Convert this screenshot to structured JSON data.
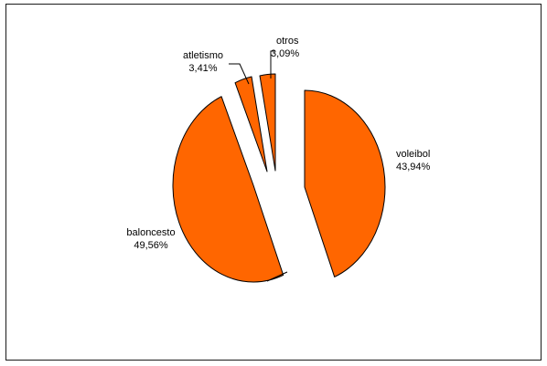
{
  "chart_data": {
    "type": "pie",
    "style": "exploded-3d",
    "slice_color": "#FF6600",
    "outline_color": "#000000",
    "background": "#FFFFFF",
    "slices": [
      {
        "label": "voleibol",
        "percent_text": "43,94%",
        "value": 43.94
      },
      {
        "label": "baloncesto",
        "percent_text": "49,56%",
        "value": 49.56
      },
      {
        "label": "atletismo",
        "percent_text": "3,41%",
        "value": 3.41
      },
      {
        "label": "otros",
        "percent_text": "3,09%",
        "value": 3.09
      }
    ]
  }
}
